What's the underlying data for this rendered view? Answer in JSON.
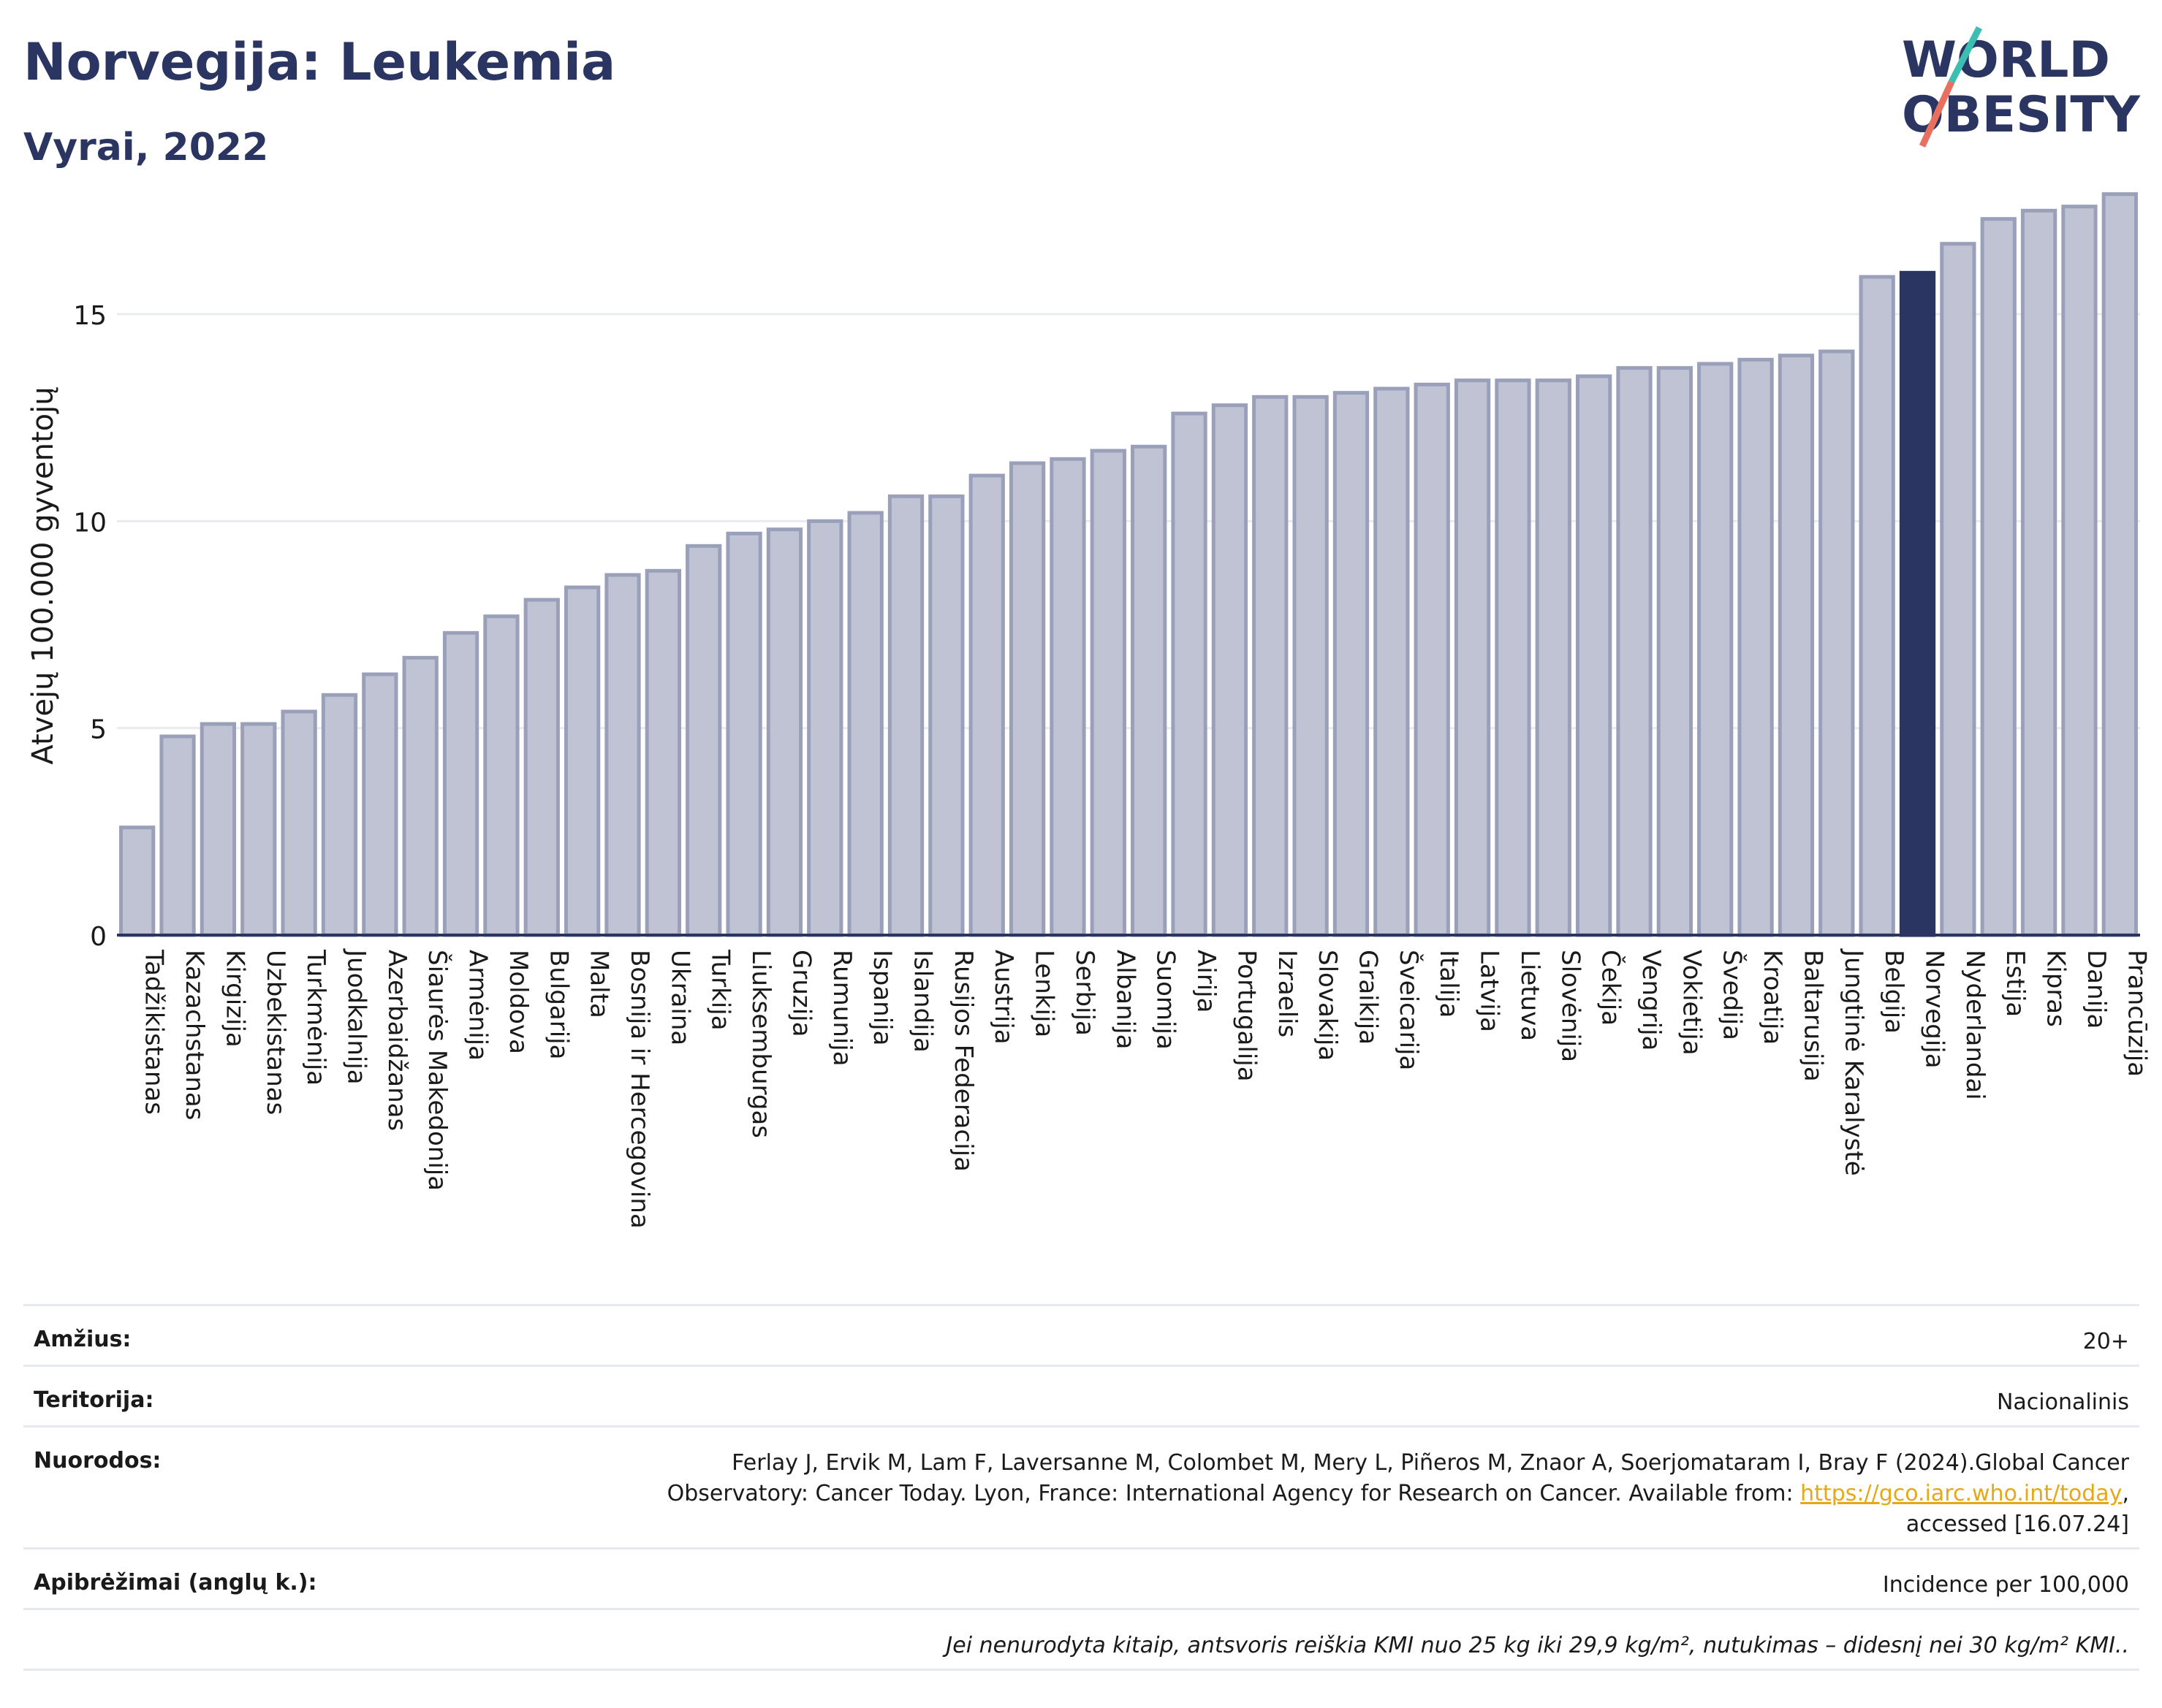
{
  "header": {
    "title": "Norvegija: Leukemia",
    "subtitle": "Vyrai, 2022"
  },
  "logo": {
    "line1": "WORLD",
    "line2": "OBESITY",
    "colors": {
      "text": "#2b3561",
      "slash_top": "#3bbfb2",
      "slash_bottom": "#e8705f"
    }
  },
  "chart_data": {
    "type": "bar",
    "ylabel": "Atvejų 100.000 gyventojų",
    "ylim": [
      0,
      18
    ],
    "yticks": [
      0,
      5,
      10,
      15
    ],
    "grid": true,
    "highlight": "Norvegija",
    "colors": {
      "bar": "#bfc3d3",
      "bar_edge": "#9aa0b9",
      "highlight": "#2b3561",
      "grid": "#e9ebf0",
      "axis": "#2b3561"
    },
    "categories": [
      "Tadžikistanas",
      "Kazachstanas",
      "Kirgizija",
      "Uzbekistanas",
      "Turkmėnija",
      "Juodkalnija",
      "Azerbaidžanas",
      "Šiaurės Makedonija",
      "Armėnija",
      "Moldova",
      "Bulgarija",
      "Malta",
      "Bosnija ir Hercegovina",
      "Ukraina",
      "Turkija",
      "Liuksemburgas",
      "Gruzija",
      "Rumunija",
      "Ispanija",
      "Islandija",
      "Rusijos Federacija",
      "Austrija",
      "Lenkija",
      "Serbija",
      "Albanija",
      "Suomija",
      "Airija",
      "Portugalija",
      "Izraelis",
      "Slovakija",
      "Graikija",
      "Šveicarija",
      "Italija",
      "Latvija",
      "Lietuva",
      "Slovėnija",
      "Čekija",
      "Vengrija",
      "Vokietija",
      "Švedija",
      "Kroatija",
      "Baltarusija",
      "Jungtinė Karalystė",
      "Belgija",
      "Norvegija",
      "Nyderlandai",
      "Estija",
      "Kipras",
      "Danija",
      "Prancūzija"
    ],
    "values": [
      2.6,
      4.8,
      5.1,
      5.1,
      5.4,
      5.8,
      6.3,
      6.7,
      7.3,
      7.7,
      8.1,
      8.4,
      8.7,
      8.8,
      9.4,
      9.7,
      9.8,
      10.0,
      10.2,
      10.6,
      10.6,
      11.1,
      11.4,
      11.5,
      11.7,
      11.8,
      12.6,
      12.8,
      13.0,
      13.0,
      13.1,
      13.2,
      13.3,
      13.4,
      13.4,
      13.4,
      13.5,
      13.7,
      13.7,
      13.8,
      13.9,
      14.0,
      14.1,
      15.9,
      16.0,
      16.7,
      17.3,
      17.5,
      17.6,
      17.9
    ]
  },
  "info": {
    "age_label": "Amžius:",
    "age_value": "20+",
    "territory_label": "Teritorija:",
    "territory_value": "Nacionalinis",
    "refs_label": "Nuorodos:",
    "refs_line1": "Ferlay J, Ervik M, Lam F, Laversanne M, Colombet M, Mery L, Piñeros M, Znaor A, Soerjomataram I, Bray F (2024).Global Cancer",
    "refs_line2_pre": "Observatory: Cancer Today. Lyon, France: International Agency for Research on Cancer. Available from: ",
    "refs_link": "https://gco.iarc.who.int/today",
    "refs_line2_post": ",",
    "refs_line3": "accessed [16.07.24]",
    "defs_label": "Apibrėžimai (anglų k.):",
    "defs_value": "Incidence per 100,000",
    "note": "Jei nenurodyta kitaip, antsvoris reiškia KMI nuo 25 kg iki 29,9 kg/m², nutukimas – didesnį nei 30 kg/m² KMI.."
  }
}
